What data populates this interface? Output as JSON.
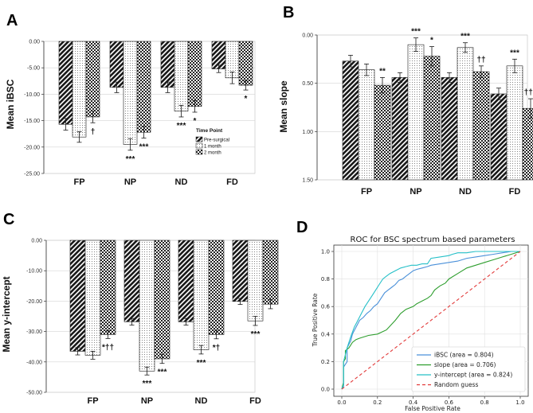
{
  "panel_labels": [
    "A",
    "B",
    "C",
    "D"
  ],
  "chart_data": [
    {
      "type": "bar",
      "panel": "A",
      "title": "",
      "xlabel": "",
      "ylabel": "Mean iBSC",
      "categories": [
        "FP",
        "NP",
        "ND",
        "FD"
      ],
      "ylim": [
        -25,
        0
      ],
      "yticks": [
        "0.00",
        "-5.00",
        "-10.00",
        "-15.00",
        "-20.00",
        "-25.00"
      ],
      "series": [
        {
          "name": "Pre-surgical",
          "values": [
            -15.7,
            -8.7,
            -8.7,
            -5.2
          ],
          "err": [
            1.1,
            1.0,
            1.0,
            0.7
          ]
        },
        {
          "name": "1 month",
          "values": [
            -18.1,
            -19.5,
            -13.2,
            -6.9
          ],
          "err": [
            1.0,
            1.1,
            1.1,
            1.1
          ]
        },
        {
          "name": "2 month",
          "values": [
            -14.3,
            -17.2,
            -12.3,
            -8.3
          ],
          "err": [
            1.1,
            1.1,
            1.1,
            0.9
          ]
        }
      ],
      "annotations": [
        {
          "category": "FP",
          "series": 2,
          "text": "†"
        },
        {
          "category": "NP",
          "series": 1,
          "text": "***"
        },
        {
          "category": "NP",
          "series": 2,
          "text": "***"
        },
        {
          "category": "ND",
          "series": 1,
          "text": "***"
        },
        {
          "category": "ND",
          "series": 2,
          "text": "*"
        },
        {
          "category": "FD",
          "series": 2,
          "text": "*"
        }
      ],
      "legend": {
        "title": "Time Point",
        "position": "lower-right"
      }
    },
    {
      "type": "bar",
      "panel": "B",
      "title": "",
      "xlabel": "",
      "ylabel": "Mean slope",
      "categories": [
        "FP",
        "NP",
        "ND",
        "FD"
      ],
      "ylim": [
        0,
        1.5
      ],
      "yticks": [
        "0.00",
        "0.50",
        "1.00",
        "1.50"
      ],
      "series": [
        {
          "name": "Pre-surgical",
          "values": [
            1.23,
            1.06,
            1.06,
            0.89
          ],
          "err": [
            0.06,
            0.05,
            0.05,
            0.06
          ]
        },
        {
          "name": "1 month",
          "values": [
            1.14,
            1.4,
            1.37,
            1.18
          ],
          "err": [
            0.06,
            0.07,
            0.05,
            0.07
          ]
        },
        {
          "name": "2 month",
          "values": [
            0.98,
            1.28,
            1.12,
            0.74
          ],
          "err": [
            0.08,
            0.1,
            0.06,
            0.1
          ]
        }
      ],
      "annotations": [
        {
          "category": "FP",
          "series": 2,
          "text": "**"
        },
        {
          "category": "NP",
          "series": 1,
          "text": "***"
        },
        {
          "category": "NP",
          "series": 2,
          "text": "*"
        },
        {
          "category": "ND",
          "series": 1,
          "text": "***"
        },
        {
          "category": "ND",
          "series": 2,
          "text": "††"
        },
        {
          "category": "FD",
          "series": 1,
          "text": "***"
        },
        {
          "category": "FD",
          "series": 2,
          "text": "†††"
        }
      ]
    },
    {
      "type": "bar",
      "panel": "C",
      "title": "",
      "xlabel": "",
      "ylabel": "Mean y-intercept",
      "categories": [
        "FP",
        "NP",
        "ND",
        "FD"
      ],
      "ylim": [
        -50,
        0
      ],
      "yticks": [
        "0.00",
        "-10.00",
        "-20.00",
        "-30.00",
        "-40.00",
        "-50.00"
      ],
      "series": [
        {
          "name": "Pre-surgical",
          "values": [
            -36.5,
            -26.8,
            -26.8,
            -20.1
          ],
          "err": [
            1.2,
            1.1,
            1.1,
            1.0
          ]
        },
        {
          "name": "1 month",
          "values": [
            -37.8,
            -43.0,
            -36.0,
            -26.5
          ],
          "err": [
            1.3,
            1.3,
            1.4,
            1.5
          ]
        },
        {
          "name": "2 month",
          "values": [
            -31.0,
            -39.0,
            -31.0,
            -21.0
          ],
          "err": [
            1.3,
            1.5,
            1.4,
            1.5
          ]
        }
      ],
      "annotations": [
        {
          "category": "FP",
          "series": 2,
          "text": "*††"
        },
        {
          "category": "NP",
          "series": 1,
          "text": "***"
        },
        {
          "category": "NP",
          "series": 2,
          "text": "***"
        },
        {
          "category": "ND",
          "series": 1,
          "text": "***"
        },
        {
          "category": "ND",
          "series": 2,
          "text": "*†"
        },
        {
          "category": "FD",
          "series": 1,
          "text": "***"
        }
      ]
    },
    {
      "type": "line",
      "panel": "D",
      "title": "ROC for BSC spectrum based parameters",
      "xlabel": "False Positive Rate",
      "ylabel": "True Positive Rate",
      "xlim": [
        0,
        1
      ],
      "ylim": [
        0,
        1
      ],
      "xticks": [
        "0.0",
        "0.2",
        "0.4",
        "0.6",
        "0.8",
        "1.0"
      ],
      "yticks": [
        "0.0",
        "0.2",
        "0.4",
        "0.6",
        "0.8",
        "1.0"
      ],
      "grid": true,
      "legend_position": "lower-right",
      "series": [
        {
          "name": "iBSC (area = 0.804)",
          "color": "#4a90d9",
          "x": [
            0,
            0.01,
            0.01,
            0.03,
            0.03,
            0.05,
            0.06,
            0.08,
            0.1,
            0.12,
            0.14,
            0.16,
            0.18,
            0.2,
            0.22,
            0.24,
            0.26,
            0.28,
            0.3,
            0.32,
            0.34,
            0.36,
            0.38,
            0.4,
            0.42,
            0.45,
            0.48,
            0.5,
            0.55,
            0.6,
            0.65,
            0.7,
            0.75,
            0.8,
            0.85,
            0.9,
            0.95,
            1.0
          ],
          "y": [
            0,
            0.02,
            0.16,
            0.2,
            0.3,
            0.35,
            0.4,
            0.45,
            0.5,
            0.52,
            0.55,
            0.57,
            0.6,
            0.62,
            0.66,
            0.7,
            0.72,
            0.74,
            0.76,
            0.79,
            0.8,
            0.82,
            0.84,
            0.86,
            0.87,
            0.88,
            0.89,
            0.9,
            0.91,
            0.92,
            0.93,
            0.95,
            0.96,
            0.97,
            0.98,
            0.99,
            1.0,
            1.0
          ]
        },
        {
          "name": "slope (area = 0.706)",
          "color": "#2e9e2e",
          "x": [
            0,
            0.01,
            0.01,
            0.02,
            0.02,
            0.04,
            0.06,
            0.08,
            0.1,
            0.15,
            0.2,
            0.25,
            0.3,
            0.33,
            0.36,
            0.4,
            0.42,
            0.45,
            0.48,
            0.5,
            0.52,
            0.55,
            0.58,
            0.6,
            0.65,
            0.7,
            0.75,
            0.8,
            0.85,
            0.9,
            0.95,
            1.0
          ],
          "y": [
            0,
            0.05,
            0.2,
            0.22,
            0.28,
            0.3,
            0.34,
            0.36,
            0.37,
            0.39,
            0.4,
            0.43,
            0.5,
            0.55,
            0.58,
            0.6,
            0.62,
            0.64,
            0.66,
            0.68,
            0.72,
            0.75,
            0.77,
            0.8,
            0.84,
            0.88,
            0.9,
            0.92,
            0.94,
            0.96,
            0.98,
            1.0
          ]
        },
        {
          "name": "y-intercept (area = 0.824)",
          "color": "#26c0c8",
          "x": [
            0,
            0.01,
            0.01,
            0.02,
            0.03,
            0.05,
            0.07,
            0.09,
            0.11,
            0.13,
            0.15,
            0.17,
            0.19,
            0.21,
            0.23,
            0.25,
            0.27,
            0.3,
            0.33,
            0.36,
            0.39,
            0.42,
            0.45,
            0.48,
            0.5,
            0.55,
            0.6,
            0.62,
            0.65,
            0.7,
            0.75,
            0.8,
            0.85,
            0.9,
            0.95,
            1.0
          ],
          "y": [
            0,
            0.03,
            0.2,
            0.25,
            0.3,
            0.38,
            0.45,
            0.5,
            0.55,
            0.6,
            0.64,
            0.68,
            0.72,
            0.76,
            0.8,
            0.82,
            0.84,
            0.86,
            0.88,
            0.89,
            0.9,
            0.9,
            0.91,
            0.91,
            0.95,
            0.96,
            0.97,
            0.98,
            0.99,
            0.99,
            1.0,
            1.0,
            1.0,
            1.0,
            1.0,
            1.0
          ]
        },
        {
          "name": "Random guess",
          "color": "#e23a3a",
          "dashed": true,
          "x": [
            0,
            1
          ],
          "y": [
            0,
            1
          ]
        }
      ]
    }
  ]
}
